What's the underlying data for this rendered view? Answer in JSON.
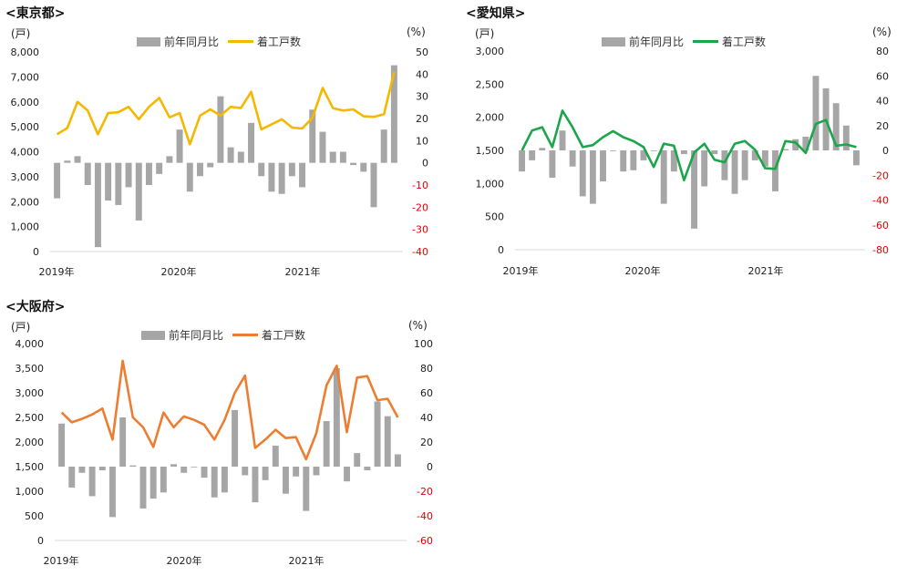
{
  "chart_data": [
    {
      "type": "bar+line",
      "title": "<東京都>",
      "left_unit": "(戸)",
      "right_unit": "(%)",
      "legend": [
        "前年同月比",
        "着工戸数"
      ],
      "line_color": "#f5b800",
      "x_labels": [
        "2019年",
        "2020年",
        "2021年"
      ],
      "left_ticks": [
        "8,000",
        "7,000",
        "6,000",
        "5,000",
        "4,000",
        "3,000",
        "2,000",
        "1,000",
        "0"
      ],
      "right_ticks": [
        "50",
        "40",
        "30",
        "20",
        "10",
        "0",
        "-10",
        "-20",
        "-30",
        "-40"
      ],
      "ylim_left": [
        0,
        8000
      ],
      "ylim_right": [
        -40,
        50
      ],
      "units_line": [
        4700,
        4950,
        6000,
        5650,
        4700,
        5550,
        5580,
        5800,
        5300,
        5800,
        6160,
        5380,
        5550,
        4300,
        5450,
        5700,
        5450,
        5800,
        5750,
        6400,
        4900,
        5100,
        5300,
        4970,
        4930,
        5360,
        6560,
        5750,
        5650,
        5700,
        5420,
        5400,
        5500,
        7200
      ],
      "yoy_pct": [
        -16,
        1,
        3,
        -10,
        -38,
        -17,
        -19,
        -11,
        -26,
        -10,
        -5,
        3,
        15,
        -13,
        -6,
        -2,
        30,
        7,
        5,
        18,
        -6,
        -13,
        -14,
        -6,
        -11,
        24,
        14,
        5,
        5,
        -1,
        -4,
        -20,
        15,
        44
      ]
    },
    {
      "type": "bar+line",
      "title": "<愛知県>",
      "left_unit": "(戸)",
      "right_unit": "(%)",
      "legend": [
        "前年同月比",
        "着工戸数"
      ],
      "line_color": "#1ca64a",
      "x_labels": [
        "2019年",
        "2020年",
        "2021年"
      ],
      "left_ticks": [
        "3,000",
        "2,500",
        "2,000",
        "1,500",
        "1,000",
        "500",
        "0"
      ],
      "right_ticks": [
        "80",
        "60",
        "40",
        "20",
        "0",
        "-20",
        "-40",
        "-60",
        "-80"
      ],
      "ylim_left": [
        0,
        3000
      ],
      "ylim_right": [
        -80,
        80
      ],
      "units_line": [
        1500,
        1800,
        1850,
        1550,
        2100,
        1850,
        1550,
        1580,
        1700,
        1790,
        1700,
        1640,
        1550,
        1250,
        1600,
        1570,
        1050,
        1470,
        1600,
        1360,
        1320,
        1600,
        1640,
        1510,
        1230,
        1220,
        1640,
        1620,
        1460,
        1900,
        1960,
        1570,
        1590,
        1550
      ],
      "yoy_pct": [
        -17,
        -8,
        2,
        -22,
        16,
        -13,
        -37,
        -43,
        -25,
        0,
        -17,
        -16,
        -8,
        0,
        -43,
        -17,
        -3,
        -63,
        -29,
        -3,
        -24,
        -35,
        -24,
        -8,
        -13,
        -33,
        1,
        9,
        11,
        60,
        50,
        38,
        20,
        -12
      ]
    },
    {
      "type": "bar+line",
      "title": "<大阪府>",
      "left_unit": "(戸)",
      "right_unit": "(%)",
      "legend": [
        "前年同月比",
        "着工戸数"
      ],
      "line_color": "#ed7d31",
      "x_labels": [
        "2019年",
        "2020年",
        "2021年"
      ],
      "left_ticks": [
        "4,000",
        "3,500",
        "3,000",
        "2,500",
        "2,000",
        "1,500",
        "1,000",
        "500",
        "0"
      ],
      "right_ticks": [
        "100",
        "80",
        "60",
        "40",
        "20",
        "0",
        "-20",
        "-40",
        "-60"
      ],
      "ylim_left": [
        0,
        4000
      ],
      "ylim_right": [
        -60,
        100
      ],
      "units_line": [
        2600,
        2400,
        2470,
        2560,
        2680,
        2050,
        3650,
        2500,
        2300,
        1900,
        2600,
        2300,
        2520,
        2450,
        2350,
        2050,
        2450,
        3000,
        3350,
        1880,
        2050,
        2250,
        2080,
        2100,
        1650,
        2180,
        3150,
        3550,
        2200,
        3310,
        3340,
        2850,
        2880,
        2500
      ],
      "yoy_pct": [
        35,
        -17,
        -5,
        -24,
        -3,
        -41,
        40,
        1,
        -34,
        -26,
        -21,
        2,
        -5,
        0,
        -9,
        -25,
        -21,
        46,
        -7,
        -29,
        -11,
        17,
        -22,
        -8,
        -36,
        -7,
        37,
        80,
        -12,
        11,
        -3,
        53,
        41,
        10
      ]
    }
  ]
}
